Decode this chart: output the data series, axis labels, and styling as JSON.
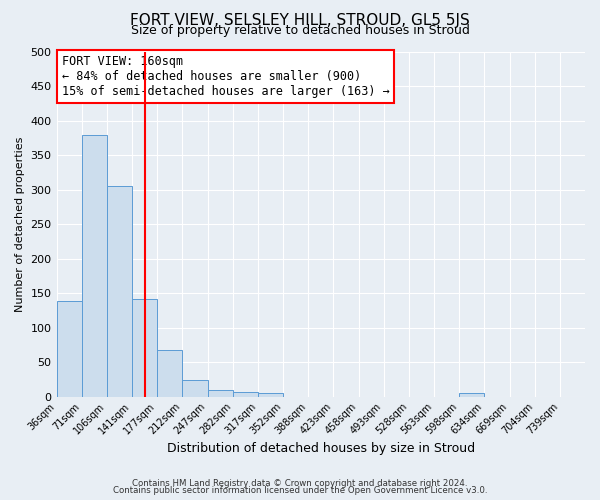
{
  "title": "FORT VIEW, SELSLEY HILL, STROUD, GL5 5JS",
  "subtitle": "Size of property relative to detached houses in Stroud",
  "xlabel": "Distribution of detached houses by size in Stroud",
  "ylabel": "Number of detached properties",
  "footer_line1": "Contains HM Land Registry data © Crown copyright and database right 2024.",
  "footer_line2": "Contains public sector information licensed under the Open Government Licence v3.0.",
  "bin_labels": [
    "36sqm",
    "71sqm",
    "106sqm",
    "141sqm",
    "177sqm",
    "212sqm",
    "247sqm",
    "282sqm",
    "317sqm",
    "352sqm",
    "388sqm",
    "423sqm",
    "458sqm",
    "493sqm",
    "528sqm",
    "563sqm",
    "598sqm",
    "634sqm",
    "669sqm",
    "704sqm",
    "739sqm"
  ],
  "bar_values": [
    139,
    379,
    305,
    141,
    68,
    24,
    10,
    7,
    5,
    0,
    0,
    0,
    0,
    0,
    0,
    0,
    5,
    0,
    0,
    0,
    0
  ],
  "bar_color": "#ccdded",
  "bar_edge_color": "#5b9bd5",
  "ylim": [
    0,
    500
  ],
  "yticks": [
    0,
    50,
    100,
    150,
    200,
    250,
    300,
    350,
    400,
    450,
    500
  ],
  "annotation_title": "FORT VIEW: 160sqm",
  "annotation_line1": "← 84% of detached houses are smaller (900)",
  "annotation_line2": "15% of semi-detached houses are larger (163) →",
  "background_color": "#e8eef4",
  "grid_color": "#ffffff",
  "title_fontsize": 11,
  "subtitle_fontsize": 9,
  "annot_fontsize": 8.5,
  "ylabel_fontsize": 8,
  "xlabel_fontsize": 9
}
